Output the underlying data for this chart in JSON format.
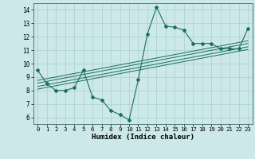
{
  "xlabel": "Humidex (Indice chaleur)",
  "ylabel": "",
  "bg_color": "#cce8e8",
  "grid_color": "#aed4d4",
  "line_color": "#1a6e64",
  "xlim": [
    -0.5,
    23.5
  ],
  "ylim": [
    5.5,
    14.5
  ],
  "xticks": [
    0,
    1,
    2,
    3,
    4,
    5,
    6,
    7,
    8,
    9,
    10,
    11,
    12,
    13,
    14,
    15,
    16,
    17,
    18,
    19,
    20,
    21,
    22,
    23
  ],
  "yticks": [
    6,
    7,
    8,
    9,
    10,
    11,
    12,
    13,
    14
  ],
  "curve1_x": [
    0,
    1,
    2,
    3,
    4,
    5,
    6,
    7,
    8,
    9,
    10,
    11,
    12,
    13,
    14,
    15,
    16,
    17,
    18,
    19,
    20,
    21,
    22,
    23
  ],
  "curve1_y": [
    9.5,
    8.5,
    8.0,
    8.0,
    8.2,
    9.5,
    7.5,
    7.3,
    6.5,
    6.2,
    5.8,
    8.8,
    12.2,
    14.2,
    12.8,
    12.7,
    12.5,
    11.5,
    11.5,
    11.5,
    11.1,
    11.1,
    11.1,
    12.6
  ],
  "reg_line_x": [
    0,
    23
  ],
  "reg_lines": [
    [
      8.1,
      11.05
    ],
    [
      8.3,
      11.25
    ],
    [
      8.55,
      11.5
    ],
    [
      8.75,
      11.7
    ]
  ]
}
